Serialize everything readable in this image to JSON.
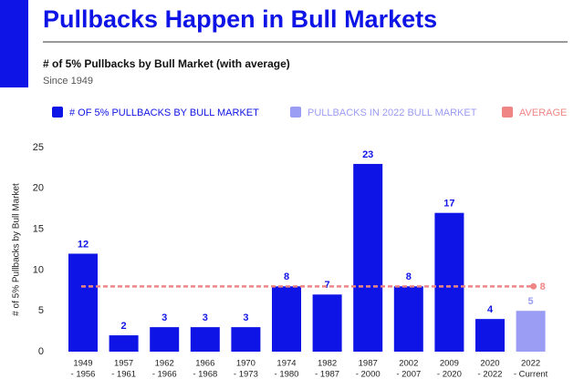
{
  "chart_data": {
    "type": "bar",
    "title": "Pullbacks Happen in Bull Markets",
    "subtitle": "# of 5% Pullbacks by Bull Market (with average)",
    "note": "Since 1949",
    "y_label": "# of 5% Pullbacks by Bull Market",
    "categories": [
      [
        "1949",
        "- 1956"
      ],
      [
        "1957",
        "- 1961"
      ],
      [
        "1962",
        "- 1966"
      ],
      [
        "1966",
        "- 1968"
      ],
      [
        "1970",
        "- 1973"
      ],
      [
        "1974",
        "- 1980"
      ],
      [
        "1982",
        "- 1987"
      ],
      [
        "1987",
        "- 2000"
      ],
      [
        "2002",
        "- 2007"
      ],
      [
        "2009",
        "- 2020"
      ],
      [
        "2020",
        "- 2022"
      ],
      [
        "2022",
        "- Current"
      ]
    ],
    "series": [
      {
        "name": "# OF 5% PULLBACKS BY BULL MARKET",
        "color": "#0f14e6",
        "values": [
          12,
          2,
          3,
          3,
          3,
          8,
          7,
          23,
          8,
          17,
          4,
          null
        ]
      },
      {
        "name": "PULLBACKS IN 2022 BULL MARKET",
        "color": "#9b9cf4",
        "values": [
          null,
          null,
          null,
          null,
          null,
          null,
          null,
          null,
          null,
          null,
          null,
          5
        ]
      }
    ],
    "average": {
      "name": "AVERAGE",
      "value": 8,
      "color": "#f08585"
    },
    "ylim": [
      0,
      25
    ],
    "yticks": [
      0,
      5,
      10,
      15,
      20,
      25
    ]
  }
}
